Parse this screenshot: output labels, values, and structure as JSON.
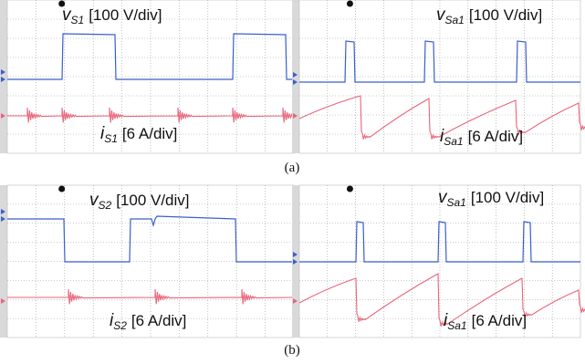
{
  "figure": {
    "panels": [
      {
        "voltage_label": {
          "symbol": "v",
          "subscript": "S1",
          "scale": "[100 V/div]"
        },
        "current_label": {
          "symbol": "i",
          "subscript": "S1",
          "scale": "[6 A/div]"
        }
      },
      {
        "voltage_label": {
          "symbol": "v",
          "subscript": "Sa1",
          "scale": "[100 V/div]"
        },
        "current_label": {
          "symbol": "i",
          "subscript": "Sa1",
          "scale": "[6 A/div]"
        }
      },
      {
        "voltage_label": {
          "symbol": "v",
          "subscript": "S2",
          "scale": "[100 V/div]"
        },
        "current_label": {
          "symbol": "i",
          "subscript": "S2",
          "scale": "[6 A/div]"
        }
      },
      {
        "voltage_label": {
          "symbol": "v",
          "subscript": "Sa1",
          "scale": "[100 V/div]"
        },
        "current_label": {
          "symbol": "i",
          "subscript": "Sa1",
          "scale": "[6 A/div]"
        }
      }
    ],
    "captions": [
      "(a)",
      "(b)"
    ]
  }
}
